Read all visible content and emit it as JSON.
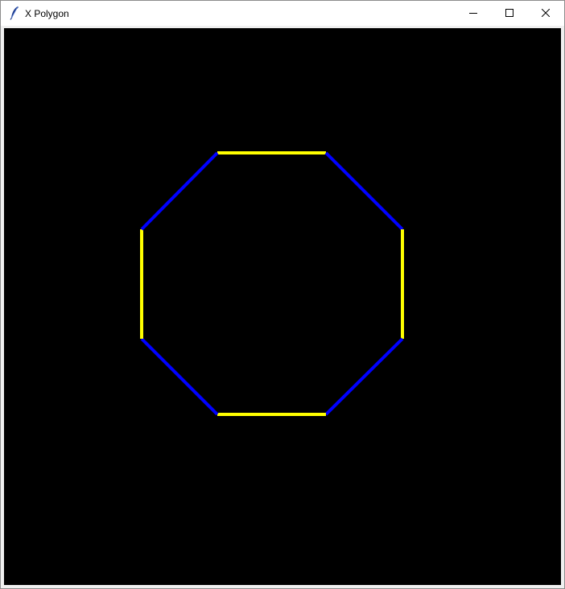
{
  "window": {
    "title": "X Polygon",
    "icon": "feather-icon",
    "controls": {
      "minimize": "minimize-icon",
      "maximize": "maximize-icon",
      "close": "close-icon"
    }
  },
  "canvas": {
    "background": "#000000",
    "shape": "octagon",
    "edge_colors": [
      "#ffff00",
      "#0000ff"
    ]
  }
}
